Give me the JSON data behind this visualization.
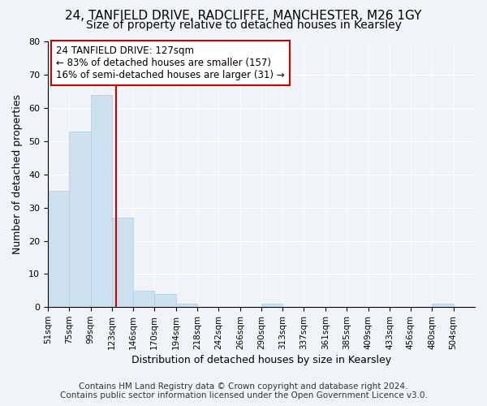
{
  "title_line1": "24, TANFIELD DRIVE, RADCLIFFE, MANCHESTER, M26 1GY",
  "title_line2": "Size of property relative to detached houses in Kearsley",
  "xlabel": "Distribution of detached houses by size in Kearsley",
  "ylabel": "Number of detached properties",
  "bar_edges": [
    51,
    75,
    99,
    123,
    146,
    170,
    194,
    218,
    242,
    266,
    290,
    313,
    337,
    361,
    385,
    409,
    433,
    456,
    480,
    504,
    528
  ],
  "bar_heights": [
    35,
    53,
    64,
    27,
    5,
    4,
    1,
    0,
    0,
    0,
    1,
    0,
    0,
    0,
    0,
    0,
    0,
    0,
    1,
    0,
    0
  ],
  "bar_color": "#cce0f0",
  "bar_edge_color": "#aaccdd",
  "reference_line_x": 127,
  "reference_line_color": "#cc0000",
  "annotation_text_line1": "24 TANFIELD DRIVE: 127sqm",
  "annotation_text_line2": "← 83% of detached houses are smaller (157)",
  "annotation_text_line3": "16% of semi-detached houses are larger (31) →",
  "annotation_box_color": "#ffffff",
  "annotation_box_edge_color": "#cc0000",
  "ylim": [
    0,
    80
  ],
  "yticks": [
    0,
    10,
    20,
    30,
    40,
    50,
    60,
    70,
    80
  ],
  "footer_line1": "Contains HM Land Registry data © Crown copyright and database right 2024.",
  "footer_line2": "Contains public sector information licensed under the Open Government Licence v3.0.",
  "background_color": "#f0f4f8",
  "plot_background_color": "#f0f4f8",
  "title_fontsize": 11,
  "subtitle_fontsize": 10,
  "axis_label_fontsize": 9,
  "tick_label_fontsize": 7.5,
  "footer_fontsize": 7.5,
  "annotation_fontsize": 8.5
}
